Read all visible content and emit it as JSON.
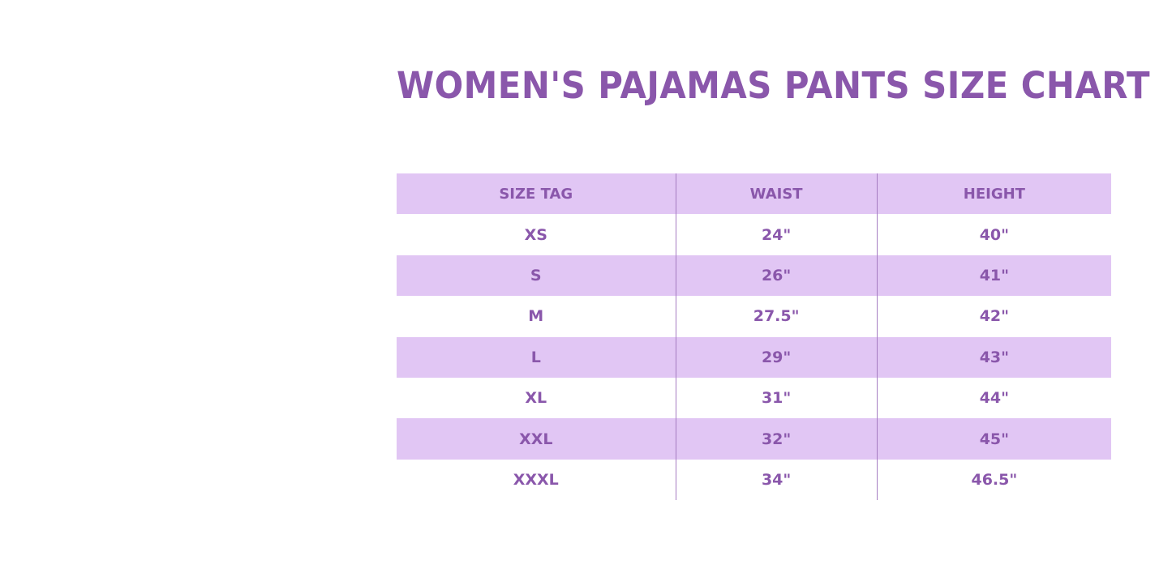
{
  "title": "WOMEN'S PAJAMAS PANTS SIZE CHART",
  "table": {
    "headers": [
      "SIZE TAG",
      "WAIST",
      "HEIGHT"
    ],
    "rows": [
      [
        "XS",
        "24\"",
        "40\""
      ],
      [
        "S",
        "26\"",
        "41\""
      ],
      [
        "M",
        "27.5\"",
        "42\""
      ],
      [
        "L",
        "29\"",
        "43\""
      ],
      [
        "XL",
        "31\"",
        "44\""
      ],
      [
        "XXL",
        "32\"",
        "45\""
      ],
      [
        "XXXL",
        "34\"",
        "46.5\""
      ]
    ]
  },
  "colors": {
    "text": "#8a57ab",
    "row_shade": "#e1c6f4",
    "divider": "#a67dc2"
  }
}
